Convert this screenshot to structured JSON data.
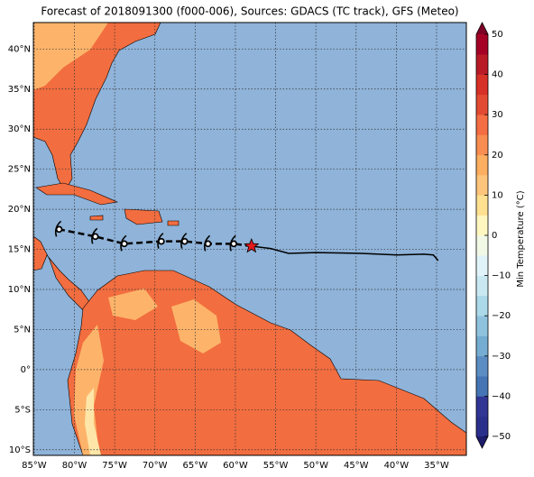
{
  "title": "Forecast of 2018091300 (f000-006), Sources: GDACS (TC track), GFS (Meteo)",
  "map": {
    "lonlim": [
      -85.1,
      -31.3
    ],
    "latlim": [
      -10.7,
      43.3
    ],
    "xticks": [
      {
        "value": -85,
        "label": "85°W"
      },
      {
        "value": -80,
        "label": "80°W"
      },
      {
        "value": -75,
        "label": "75°W"
      },
      {
        "value": -70,
        "label": "70°W"
      },
      {
        "value": -65,
        "label": "65°W"
      },
      {
        "value": -60,
        "label": "60°W"
      },
      {
        "value": -55,
        "label": "55°W"
      },
      {
        "value": -50,
        "label": "50°W"
      },
      {
        "value": -45,
        "label": "45°W"
      },
      {
        "value": -40,
        "label": "40°W"
      },
      {
        "value": -35,
        "label": "35°W"
      }
    ],
    "yticks": [
      {
        "value": -10,
        "label": "10°S"
      },
      {
        "value": -5,
        "label": "5°S"
      },
      {
        "value": 0,
        "label": "0°"
      },
      {
        "value": 5,
        "label": "5°N"
      },
      {
        "value": 10,
        "label": "10°N"
      },
      {
        "value": 15,
        "label": "15°N"
      },
      {
        "value": 20,
        "label": "20°N"
      },
      {
        "value": 25,
        "label": "25°N"
      },
      {
        "value": 30,
        "label": "30°N"
      },
      {
        "value": 35,
        "label": "35°N"
      },
      {
        "value": 40,
        "label": "40°N"
      }
    ],
    "ocean_color": "#8fb3d9",
    "grid": true
  },
  "track": {
    "observed": [
      {
        "lon": -58.0,
        "lat": 15.4
      },
      {
        "lon": -55.6,
        "lat": 15.1
      },
      {
        "lon": -53.4,
        "lat": 14.5
      },
      {
        "lon": -50.0,
        "lat": 14.6
      },
      {
        "lon": -44.4,
        "lat": 14.5
      },
      {
        "lon": -39.9,
        "lat": 14.3
      },
      {
        "lon": -36.6,
        "lat": 14.4
      },
      {
        "lon": -35.4,
        "lat": 14.3
      },
      {
        "lon": -34.8,
        "lat": 13.6
      }
    ],
    "forecast": [
      {
        "lon": -60.2,
        "lat": 15.7
      },
      {
        "lon": -63.4,
        "lat": 15.7
      },
      {
        "lon": -66.3,
        "lat": 16.0
      },
      {
        "lon": -69.2,
        "lat": 16.0
      },
      {
        "lon": -73.8,
        "lat": 15.7
      },
      {
        "lon": -77.4,
        "lat": 16.6
      },
      {
        "lon": -81.9,
        "lat": 17.5
      }
    ],
    "star_color": "#e41a1c"
  },
  "colorbar": {
    "label": "Min Temperature (°C)",
    "lim": [
      -50,
      50
    ],
    "ticks": [
      {
        "value": -50,
        "label": "−50"
      },
      {
        "value": -40,
        "label": "−40"
      },
      {
        "value": -30,
        "label": "−30"
      },
      {
        "value": -20,
        "label": "−20"
      },
      {
        "value": -10,
        "label": "−10"
      },
      0,
      10,
      20,
      30,
      40,
      50
    ],
    "colors": [
      "#2b2f8c",
      "#313695",
      "#4575b4",
      "#5b8cc2",
      "#74add1",
      "#8fc3dd",
      "#abd9e9",
      "#c9e8f2",
      "#e0f3f8",
      "#f1f9e6",
      "#fff7c0",
      "#fee090",
      "#fdc57c",
      "#fdae61",
      "#f88d52",
      "#f46d43",
      "#e34a33",
      "#d73027",
      "#b81a26",
      "#a50026"
    ],
    "under_color": "#1c1c6b",
    "over_color": "#7f0026"
  }
}
